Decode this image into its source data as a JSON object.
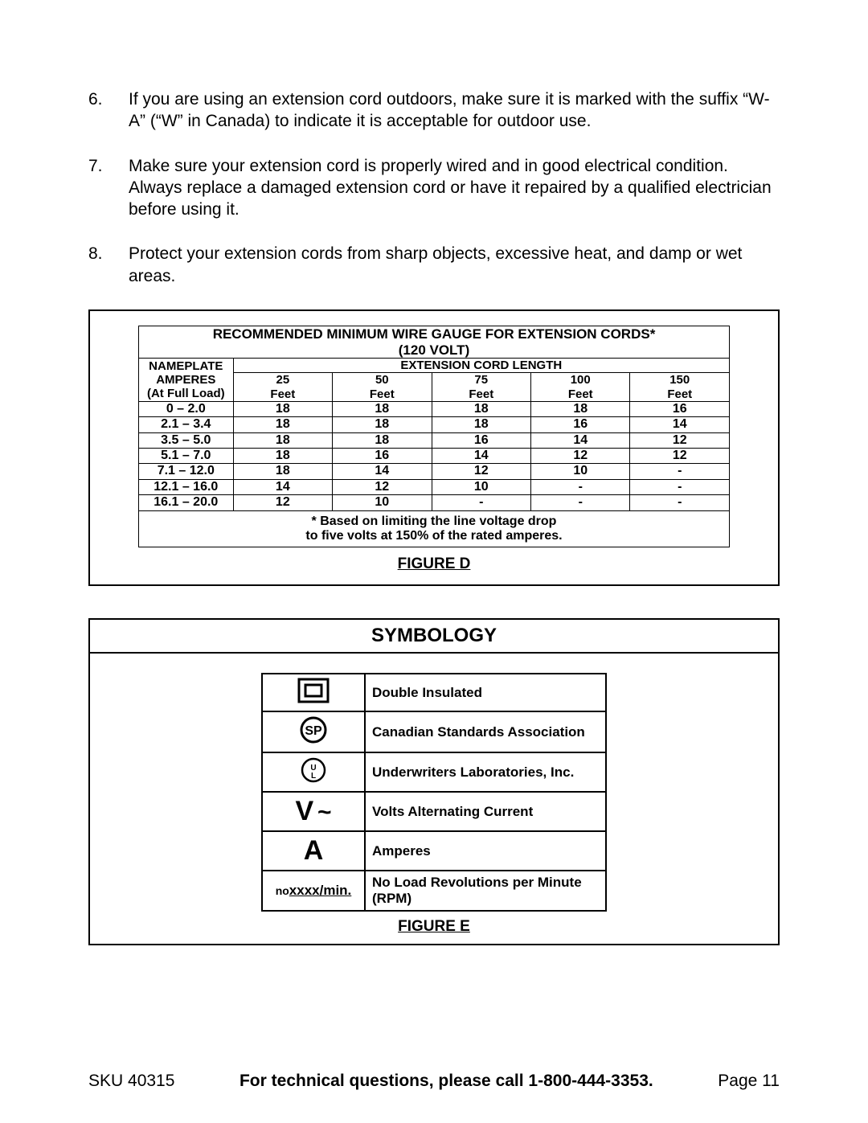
{
  "list": [
    {
      "num": "6.",
      "text": "If you are using an extension cord outdoors, make sure it is marked with the suffix  “W-A” (“W” in Canada) to indicate it is acceptable for outdoor use."
    },
    {
      "num": "7.",
      "text": "Make sure your extension cord is properly wired and in good electrical condition. Always replace a damaged extension cord or have it repaired by a qualified electrician before using it."
    },
    {
      "num": "8.",
      "text": "Protect your extension cords from sharp objects, excessive heat, and damp or wet areas."
    }
  ],
  "gauge": {
    "title_line1": "RECOMMENDED MINIMUM WIRE GAUGE FOR EXTENSION CORDS*",
    "title_line2": "(120 VOLT)",
    "col1_header_l1": "NAMEPLATE",
    "col1_header_l2": "AMPERES",
    "col1_header_l3": "(At Full Load)",
    "span_header": "EXTENSION CORD LENGTH",
    "lengths": [
      "25",
      "50",
      "75",
      "100",
      "150"
    ],
    "length_unit": "Feet",
    "rows": [
      {
        "label": "0 – 2.0",
        "vals": [
          "18",
          "18",
          "18",
          "18",
          "16"
        ]
      },
      {
        "label": "2.1 – 3.4",
        "vals": [
          "18",
          "18",
          "18",
          "16",
          "14"
        ]
      },
      {
        "label": "3.5 – 5.0",
        "vals": [
          "18",
          "18",
          "16",
          "14",
          "12"
        ]
      },
      {
        "label": "5.1 – 7.0",
        "vals": [
          "18",
          "16",
          "14",
          "12",
          "12"
        ]
      },
      {
        "label": "7.1 – 12.0",
        "vals": [
          "18",
          "14",
          "12",
          "10",
          "-"
        ]
      },
      {
        "label": "12.1 – 16.0",
        "vals": [
          "14",
          "12",
          "10",
          "-",
          "-"
        ]
      },
      {
        "label": "16.1 – 20.0",
        "vals": [
          "12",
          "10",
          "-",
          "-",
          "-"
        ]
      }
    ],
    "footnote_l1": "* Based on limiting the line voltage drop",
    "footnote_l2": "to five volts at 150% of the rated amperes.",
    "caption": "FIGURE D"
  },
  "symbology": {
    "title": "SYMBOLOGY",
    "rows": [
      {
        "icon": "double-insulated",
        "label": "Double Insulated"
      },
      {
        "icon": "csa",
        "label": "Canadian Standards Association"
      },
      {
        "icon": "ul",
        "label": "Underwriters Laboratories, Inc."
      },
      {
        "icon": "vac",
        "label": "Volts Alternating Current"
      },
      {
        "icon": "amp",
        "label": "Amperes"
      },
      {
        "icon": "rpm",
        "label": "No Load Revolutions per Minute (RPM)"
      }
    ],
    "rpm_symbol_small": "no",
    "rpm_symbol_main": "xxxx/min.",
    "caption": "FIGURE E"
  },
  "footer": {
    "sku_label": "SKU 40315",
    "mid": "For technical questions, please call 1-800-444-3353.",
    "page": "Page 11"
  }
}
